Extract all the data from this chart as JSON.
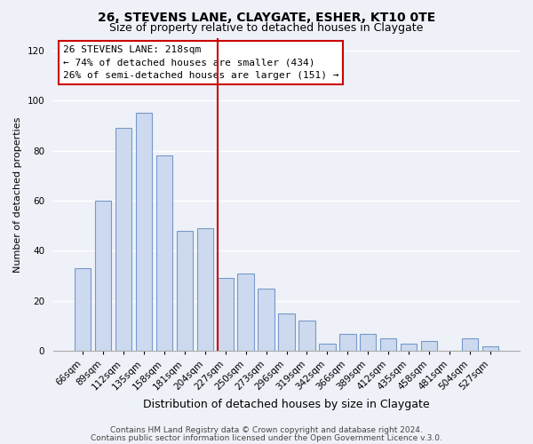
{
  "title": "26, STEVENS LANE, CLAYGATE, ESHER, KT10 0TE",
  "subtitle": "Size of property relative to detached houses in Claygate",
  "xlabel": "Distribution of detached houses by size in Claygate",
  "ylabel": "Number of detached properties",
  "categories": [
    "66sqm",
    "89sqm",
    "112sqm",
    "135sqm",
    "158sqm",
    "181sqm",
    "204sqm",
    "227sqm",
    "250sqm",
    "273sqm",
    "296sqm",
    "319sqm",
    "342sqm",
    "366sqm",
    "389sqm",
    "412sqm",
    "435sqm",
    "458sqm",
    "481sqm",
    "504sqm",
    "527sqm"
  ],
  "values": [
    33,
    60,
    89,
    95,
    78,
    48,
    49,
    29,
    31,
    25,
    15,
    12,
    3,
    7,
    7,
    5,
    3,
    4,
    0,
    5,
    2
  ],
  "bar_color": "#ccd9ee",
  "bar_edge_color": "#7799cc",
  "vline_bar_index": 7,
  "vline_color": "#cc0000",
  "annotation_title": "26 STEVENS LANE: 218sqm",
  "annotation_line1": "← 74% of detached houses are smaller (434)",
  "annotation_line2": "26% of semi-detached houses are larger (151) →",
  "annotation_box_facecolor": "white",
  "annotation_box_edgecolor": "#cc0000",
  "ylim": [
    0,
    125
  ],
  "yticks": [
    0,
    20,
    40,
    60,
    80,
    100,
    120
  ],
  "footer1": "Contains HM Land Registry data © Crown copyright and database right 2024.",
  "footer2": "Contains public sector information licensed under the Open Government Licence v.3.0.",
  "bg_color": "#eef2f8",
  "plot_bg_color": "#eef2f8",
  "grid_color": "white",
  "title_fontsize": 10,
  "subtitle_fontsize": 9,
  "ylabel_fontsize": 8,
  "xlabel_fontsize": 9,
  "tick_fontsize": 7.5,
  "footer_fontsize": 6.5
}
